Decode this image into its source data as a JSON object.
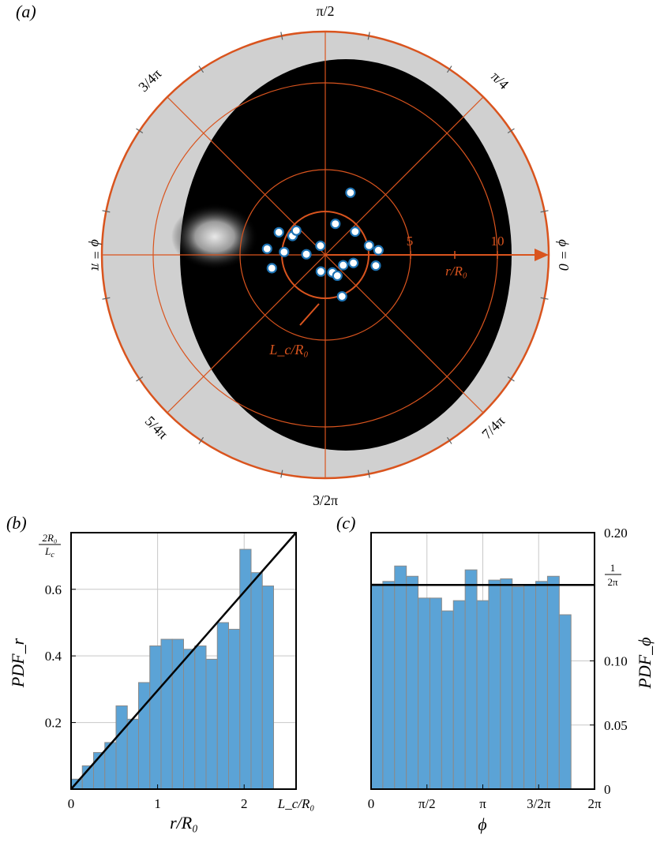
{
  "panel_a": {
    "label": "(a)",
    "angle_labels": {
      "top": "π/2",
      "top_right": "π/4",
      "right": "ϕ = 0",
      "bottom_right": "7/4π",
      "bottom": "3/2π",
      "bottom_left": "5/4π",
      "left": "ϕ = π",
      "top_left": "3/4π"
    },
    "radial_ticks": [
      "5",
      "10"
    ],
    "radial_axis_label": "r/R₀",
    "capture_radius_label": "L_c/R₀",
    "colors": {
      "grid": "#d9541e",
      "marker": "#1f74b5",
      "background": "#000000"
    },
    "particles": [
      {
        "r": 1.9,
        "phi_deg": 72
      },
      {
        "r": 0.6,
        "phi_deg": 118
      },
      {
        "r": 2.2,
        "phi_deg": 38
      },
      {
        "r": 3.0,
        "phi_deg": 154
      },
      {
        "r": 2.2,
        "phi_deg": 150
      },
      {
        "r": 2.2,
        "phi_deg": 140
      },
      {
        "r": 3.4,
        "phi_deg": 174
      },
      {
        "r": 2.4,
        "phi_deg": 176
      },
      {
        "r": 1.1,
        "phi_deg": 178
      },
      {
        "r": 2.6,
        "phi_deg": 12
      },
      {
        "r": 3.1,
        "phi_deg": 5
      },
      {
        "r": 1.7,
        "phi_deg": 344
      },
      {
        "r": 3.0,
        "phi_deg": 348
      },
      {
        "r": 3.2,
        "phi_deg": 194
      },
      {
        "r": 1.0,
        "phi_deg": 255
      },
      {
        "r": 1.1,
        "phi_deg": 292
      },
      {
        "r": 1.4,
        "phi_deg": 300
      },
      {
        "r": 1.2,
        "phi_deg": 330
      },
      {
        "r": 2.6,
        "phi_deg": 292
      },
      {
        "r": 3.9,
        "phi_deg": 68
      }
    ]
  },
  "chart_data": [
    {
      "panel_label": "(b)",
      "type": "bar",
      "xlabel": "r/R₀",
      "ylabel": "PDF_r",
      "xlim": [
        0,
        2.6
      ],
      "ylim": [
        0,
        0.77
      ],
      "x_tick_labels": [
        "0",
        "1",
        "2",
        "L_c/R₀"
      ],
      "x_ticks": [
        0,
        1,
        2,
        2.6
      ],
      "y_tick_labels": [
        "0.2",
        "0.4",
        "0.6"
      ],
      "y_ticks": [
        0.2,
        0.4,
        0.6
      ],
      "y_top_label": "2R₀/L_c",
      "bin_width": 0.13,
      "values": [
        0.03,
        0.07,
        0.11,
        0.14,
        0.25,
        0.21,
        0.32,
        0.43,
        0.45,
        0.45,
        0.42,
        0.43,
        0.39,
        0.5,
        0.48,
        0.72,
        0.65,
        0.61
      ],
      "reference_line": {
        "type": "linear",
        "from": [
          0,
          0
        ],
        "to": [
          2.6,
          0.77
        ]
      },
      "grid": true
    },
    {
      "panel_label": "(c)",
      "type": "bar",
      "xlabel": "ϕ",
      "ylabel": "PDF_ϕ",
      "xlim": [
        0,
        6.2832
      ],
      "ylim": [
        0,
        0.2
      ],
      "x_tick_labels": [
        "0",
        "π/2",
        "π",
        "3/2π",
        "2π"
      ],
      "x_ticks": [
        0,
        1.5708,
        3.1416,
        4.7124,
        6.2832
      ],
      "y_tick_labels": [
        "0",
        "0.05",
        "0.10",
        "0.20"
      ],
      "y_ticks": [
        0,
        0.05,
        0.1,
        0.2
      ],
      "y_ref_label": "1/2π",
      "y_ref_value": 0.1592,
      "y_axis_side": "right",
      "bin_width": 0.3307,
      "values": [
        0.16,
        0.162,
        0.174,
        0.166,
        0.149,
        0.149,
        0.139,
        0.147,
        0.171,
        0.147,
        0.163,
        0.164,
        0.158,
        0.159,
        0.162,
        0.166,
        0.136
      ],
      "grid": true
    }
  ]
}
